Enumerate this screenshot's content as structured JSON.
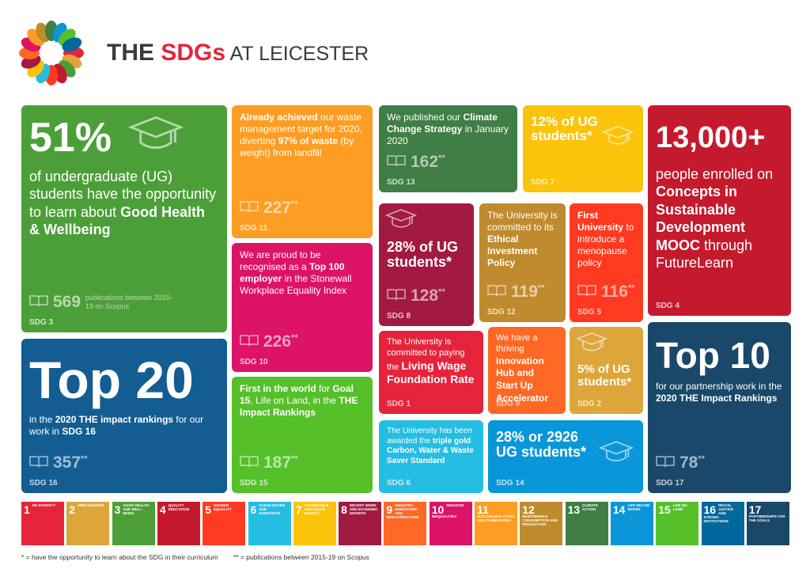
{
  "header": {
    "parts": [
      {
        "t": "THE "
      },
      {
        "t": "SDGs",
        "red": true
      },
      {
        "t": " AT LEICESTER",
        "thin": true
      }
    ]
  },
  "tiles": [
    {
      "color": "#4c9f38",
      "big": "51%",
      "body": [
        {
          "t": "of undergraduate (UG) students have the opportunity to learn about "
        },
        {
          "t": "Good Health & Wellbeing",
          "b": true
        }
      ],
      "publications": 569,
      "pub_note": "publications between 2015-19 on Scopus",
      "sdg": "SDG 3"
    },
    {
      "color": "#135d93",
      "big": "Top 20",
      "body": [
        {
          "t": "in the "
        },
        {
          "t": "2020 THE impact rankings",
          "b": true
        },
        {
          "t": " for our work in "
        },
        {
          "t": "SDG 16",
          "b": true
        }
      ],
      "publications": 357,
      "mark": "**",
      "sdg": "SDG 16"
    },
    {
      "color": "#fd9d24",
      "body": [
        {
          "t": "Already achieved",
          "b": true
        },
        {
          "t": " our waste management target for 2020, diverting "
        },
        {
          "t": "97% of waste",
          "b": true
        },
        {
          "t": " (by weight) from landfill"
        }
      ],
      "publications": 227,
      "mark": "**",
      "sdg": "SDG 11"
    },
    {
      "color": "#dd1367",
      "body": [
        {
          "t": "We are proud to be recognised as a "
        },
        {
          "t": "Top 100 employer",
          "b": true
        },
        {
          "t": " in the Stonewall Workplace Equality Index"
        }
      ],
      "publications": 226,
      "mark": "**",
      "sdg": "SDG 10"
    },
    {
      "color": "#56c02b",
      "body": [
        {
          "t": "First in the world",
          "b": true
        },
        {
          "t": " for "
        },
        {
          "t": "Goal 15",
          "b": true
        },
        {
          "t": ", Life on Land, in the "
        },
        {
          "t": "THE Impact Rankings",
          "b": true
        }
      ],
      "publications": 187,
      "mark": "**",
      "sdg": "SDG 15"
    },
    {
      "color": "#3f7e44",
      "body": [
        {
          "t": "We published our "
        },
        {
          "t": "Climate Change Strategy",
          "b": true
        },
        {
          "t": " in January 2020"
        }
      ],
      "publications": 162,
      "mark": "**",
      "sdg": "SDG 13"
    },
    {
      "color": "#fcc30b",
      "big": "12% of UG students*",
      "sdg": "SDG 7"
    },
    {
      "color": "#c5192d",
      "big": "13,000+",
      "body": [
        {
          "t": "people enrolled on "
        },
        {
          "t": "Concepts in Sustainable Development MOOC",
          "b": true
        },
        {
          "t": " through FutureLearn"
        }
      ],
      "sdg": "SDG 4"
    },
    {
      "color": "#a21942",
      "big": "28% of UG students*",
      "publications": 128,
      "mark": "**",
      "sdg": "SDG 8"
    },
    {
      "color": "#bf8b2e",
      "body": [
        {
          "t": "The University is committed to its "
        },
        {
          "t": "Ethical Investment Policy",
          "b": true
        }
      ],
      "publications": 119,
      "mark": "**",
      "sdg": "SDG 12"
    },
    {
      "color": "#ff3a21",
      "body": [
        {
          "t": "First University",
          "b": true
        },
        {
          "t": " to introduce a menopause policy"
        }
      ],
      "publications": 116,
      "mark": "**",
      "sdg": "SDG 5"
    },
    {
      "color": "#19486a",
      "big": "Top 10",
      "body": [
        {
          "t": "for our partnership work in the "
        },
        {
          "t": "2020 THE Impact Rankings",
          "b": true
        }
      ],
      "publications": 78,
      "mark": "**",
      "sdg": "SDG 17"
    },
    {
      "color": "#e5243b",
      "body": [
        {
          "t": "The University is committed to paying the "
        },
        {
          "t": "Living Wage Foundation Rate",
          "b": true
        }
      ],
      "sdg": "SDG 1"
    },
    {
      "color": "#fd6925",
      "body": [
        {
          "t": "We have a thriving "
        },
        {
          "t": "Innovation Hub and Start Up Accelerator",
          "b": true
        }
      ],
      "sdg": "SDG 9"
    },
    {
      "color": "#dda63a",
      "big": "5% of UG students*",
      "sdg": "SDG 2"
    },
    {
      "color": "#26bde2",
      "body": [
        {
          "t": "The University has been awarded the "
        },
        {
          "t": "triple gold Carbon, Water & Waste Saver Standard",
          "b": true
        }
      ],
      "sdg": "SDG 6"
    },
    {
      "color": "#0a97d9",
      "big": "28% or 2926 UG students*",
      "sdg": "SDG 14"
    }
  ],
  "goals": [
    {
      "n": 1,
      "name": "NO POVERTY",
      "color": "#e5243b"
    },
    {
      "n": 2,
      "name": "ZERO HUNGER",
      "color": "#dda63a"
    },
    {
      "n": 3,
      "name": "GOOD HEALTH AND WELL-BEING",
      "color": "#4c9f38"
    },
    {
      "n": 4,
      "name": "QUALITY EDUCATION",
      "color": "#c5192d"
    },
    {
      "n": 5,
      "name": "GENDER EQUALITY",
      "color": "#ff3a21"
    },
    {
      "n": 6,
      "name": "CLEAN WATER AND SANITATION",
      "color": "#26bde2"
    },
    {
      "n": 7,
      "name": "AFFORDABLE AND CLEAN ENERGY",
      "color": "#fcc30b"
    },
    {
      "n": 8,
      "name": "DECENT WORK AND ECONOMIC GROWTH",
      "color": "#a21942"
    },
    {
      "n": 9,
      "name": "INDUSTRY, INNOVATION AND INFRASTRUCTURE",
      "color": "#fd6925"
    },
    {
      "n": 10,
      "name": "REDUCED INEQUALITIES",
      "color": "#dd1367"
    },
    {
      "n": 11,
      "name": "SUSTAINABLE CITIES AND COMMUNITIES",
      "color": "#fd9d24"
    },
    {
      "n": 12,
      "name": "RESPONSIBLE CONSUMPTION AND PRODUCTION",
      "color": "#bf8b2e"
    },
    {
      "n": 13,
      "name": "CLIMATE ACTION",
      "color": "#3f7e44"
    },
    {
      "n": 14,
      "name": "LIFE BELOW WATER",
      "color": "#0a97d9"
    },
    {
      "n": 15,
      "name": "LIFE ON LAND",
      "color": "#56c02b"
    },
    {
      "n": 16,
      "name": "PEACE, JUSTICE AND STRONG INSTITUTIONS",
      "color": "#00689d"
    },
    {
      "n": 17,
      "name": "PARTNERSHIPS FOR THE GOALS",
      "color": "#19486a"
    }
  ],
  "footnotes": [
    "* = have the opportunity to learn about the SDG in their curriculum",
    "** = publications between 2015-19 on Scopus"
  ]
}
